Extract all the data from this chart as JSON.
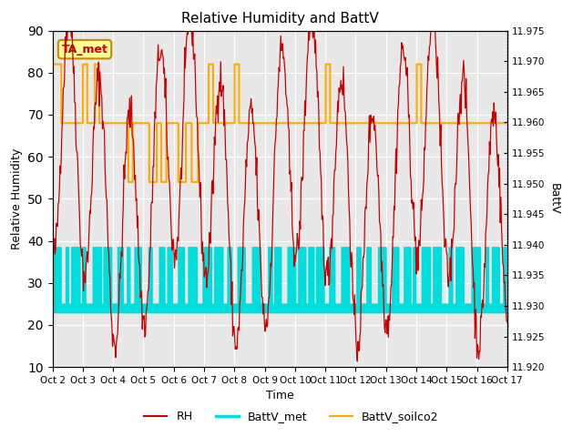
{
  "title": "Relative Humidity and BattV",
  "ylabel_left": "Relative Humidity",
  "ylabel_right": "BattV",
  "xlabel": "Time",
  "annotation_text": "TA_met",
  "ylim_left": [
    10,
    90
  ],
  "ylim_right": [
    11.92,
    11.975
  ],
  "yticks_left": [
    10,
    20,
    30,
    40,
    50,
    60,
    70,
    80,
    90
  ],
  "yticks_right": [
    11.92,
    11.925,
    11.93,
    11.935,
    11.94,
    11.945,
    11.95,
    11.955,
    11.96,
    11.965,
    11.97,
    11.975
  ],
  "xtick_labels": [
    "Oct 2",
    "Oct 3",
    "Oct 4",
    "Oct 5",
    "Oct 6",
    "Oct 7",
    "Oct 8",
    "Oct 9",
    "Oct 10",
    "Oct 11",
    "Oct 12",
    "Oct 13",
    "Oct 14",
    "Oct 15",
    "Oct 16",
    "Oct 17"
  ],
  "colors": {
    "RH": "#cc0000",
    "BattV_met": "#00dddd",
    "BattV_soilco2": "#ffaa00",
    "background": "#e8e8e8",
    "annotation_bg": "#ffff99",
    "annotation_border": "#cc8800",
    "grid": "#ffffff"
  },
  "legend_labels": [
    "RH",
    "BattV_met",
    "BattV_soilco2"
  ],
  "n_days": 15,
  "pts_per_day": 48,
  "rh_seed": 42,
  "battv_met_high": 38.5,
  "battv_met_low": 25.0,
  "soil_base_high": 68.0,
  "soil_base_mid": 54.0,
  "soil_base_spike": 82.0,
  "figsize": [
    6.4,
    4.8
  ],
  "dpi": 100
}
